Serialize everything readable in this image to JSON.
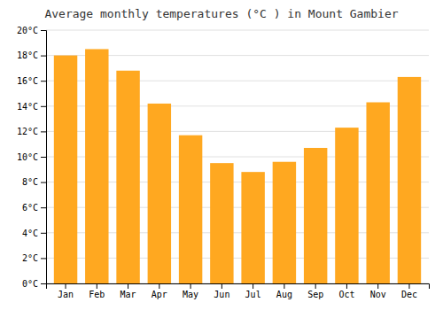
{
  "chart_data": {
    "type": "bar",
    "title": "Average monthly temperatures (°C ) in Mount Gambier",
    "categories": [
      "Jan",
      "Feb",
      "Mar",
      "Apr",
      "May",
      "Jun",
      "Jul",
      "Aug",
      "Sep",
      "Oct",
      "Nov",
      "Dec"
    ],
    "values": [
      18.0,
      18.5,
      16.8,
      14.2,
      11.7,
      9.5,
      8.8,
      9.6,
      10.7,
      12.3,
      14.3,
      16.3
    ],
    "color": "#FFA820",
    "ylim": [
      0,
      20
    ],
    "yticks": [
      {
        "value": 0,
        "label": "0°C"
      },
      {
        "value": 2,
        "label": "2°C"
      },
      {
        "value": 4,
        "label": "4°C"
      },
      {
        "value": 6,
        "label": "6°C"
      },
      {
        "value": 8,
        "label": "8°C"
      },
      {
        "value": 10,
        "label": "10°C"
      },
      {
        "value": 12,
        "label": "12°C"
      },
      {
        "value": 14,
        "label": "14°C"
      },
      {
        "value": 16,
        "label": "16°C"
      },
      {
        "value": 18,
        "label": "18°C"
      },
      {
        "value": 20,
        "label": "20°C"
      }
    ],
    "grid": true
  }
}
